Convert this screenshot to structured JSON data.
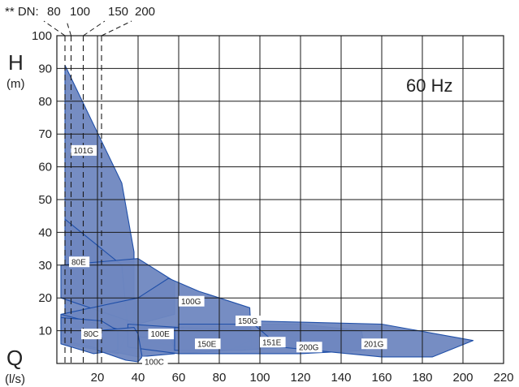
{
  "chart_data": {
    "type": "area",
    "frequency_label": "60 Hz",
    "y_axis": {
      "letter": "H",
      "unit": "(m)",
      "range": [
        0,
        100
      ],
      "ticks": [
        10,
        20,
        30,
        40,
        50,
        60,
        70,
        80,
        90,
        100
      ]
    },
    "x_axis": {
      "letter": "Q",
      "unit": "(l/s)",
      "range": [
        0,
        220
      ],
      "ticks": [
        20,
        40,
        60,
        80,
        100,
        120,
        140,
        160,
        180,
        200,
        220
      ]
    },
    "grid": true,
    "dn_marker": {
      "prefix": "** DN:",
      "labels": [
        "80",
        "100",
        "150",
        "200"
      ],
      "x": [
        4,
        7,
        13,
        22
      ]
    },
    "regions": [
      {
        "label": "101G",
        "label_at": [
          7,
          65
        ],
        "points": [
          [
            4,
            91
          ],
          [
            32,
            55
          ],
          [
            38,
            34
          ],
          [
            38,
            5
          ],
          [
            30,
            3
          ],
          [
            4,
            32
          ]
        ]
      },
      {
        "label": "80E",
        "label_at": [
          6,
          31
        ],
        "points": [
          [
            4,
            44
          ],
          [
            32,
            30
          ],
          [
            35,
            10
          ],
          [
            30,
            3
          ],
          [
            4,
            6
          ]
        ]
      },
      {
        "label": "100G",
        "label_at": [
          60,
          19
        ],
        "points": [
          [
            2,
            30
          ],
          [
            40,
            32
          ],
          [
            58,
            25
          ],
          [
            58,
            15
          ],
          [
            40,
            12
          ],
          [
            2,
            20
          ]
        ]
      },
      {
        "label": "150G",
        "label_at": [
          88,
          13
        ],
        "points": [
          [
            2,
            15
          ],
          [
            40,
            20
          ],
          [
            55,
            26
          ],
          [
            70,
            22
          ],
          [
            95,
            17
          ],
          [
            96,
            5
          ],
          [
            60,
            5
          ],
          [
            2,
            12
          ]
        ]
      },
      {
        "label": "100E",
        "label_at": [
          45,
          9
        ],
        "points": [
          [
            2,
            15
          ],
          [
            33,
            10
          ],
          [
            42,
            8
          ],
          [
            56,
            9
          ],
          [
            58,
            3
          ],
          [
            40,
            2
          ],
          [
            2,
            7
          ]
        ]
      },
      {
        "label": "150E",
        "label_at": [
          68,
          6
        ],
        "points": [
          [
            35,
            12
          ],
          [
            60,
            11
          ],
          [
            88,
            10
          ],
          [
            95,
            7
          ],
          [
            85,
            4
          ],
          [
            60,
            3
          ],
          [
            35,
            5
          ]
        ]
      },
      {
        "label": "151E",
        "label_at": [
          100,
          6.5
        ],
        "points": [
          [
            58,
            11
          ],
          [
            100,
            10
          ],
          [
            118,
            8
          ],
          [
            115,
            5
          ],
          [
            90,
            4
          ],
          [
            58,
            4
          ]
        ]
      },
      {
        "label": "200G",
        "label_at": [
          118,
          5
        ],
        "points": [
          [
            60,
            12
          ],
          [
            120,
            12
          ],
          [
            150,
            10
          ],
          [
            152,
            4
          ],
          [
            120,
            3
          ],
          [
            60,
            3
          ]
        ]
      },
      {
        "label": "201G",
        "label_at": [
          150,
          6
        ],
        "points": [
          [
            95,
            13
          ],
          [
            160,
            12
          ],
          [
            205,
            7
          ],
          [
            185,
            2
          ],
          [
            160,
            2
          ],
          [
            110,
            5
          ]
        ]
      },
      {
        "label": "80C",
        "label_at": [
          12,
          9
        ],
        "points": [
          [
            2,
            14
          ],
          [
            22,
            13
          ],
          [
            30,
            10
          ],
          [
            30,
            4
          ],
          [
            18,
            3
          ],
          [
            2,
            6
          ]
        ]
      },
      {
        "label": "100C",
        "label_at": [
          42,
          0.5
        ],
        "points": [
          [
            20,
            10
          ],
          [
            38,
            11
          ],
          [
            40,
            9
          ],
          [
            42,
            2
          ],
          [
            40,
            0.5
          ],
          [
            34,
            1
          ],
          [
            20,
            4
          ]
        ]
      }
    ]
  }
}
